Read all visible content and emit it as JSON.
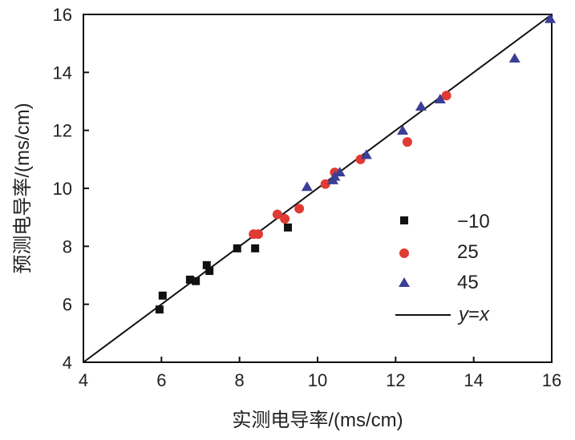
{
  "chart_data": {
    "type": "scatter",
    "title": "",
    "xlabel": "实测电导率/(ms/cm)",
    "ylabel": "预测电导率/(ms/cm)",
    "xlim": [
      4,
      16
    ],
    "ylim": [
      4,
      16
    ],
    "xticks": [
      "4",
      "6",
      "8",
      "10",
      "12",
      "14",
      "16"
    ],
    "yticks": [
      "4",
      "6",
      "8",
      "10",
      "12",
      "14",
      "16"
    ],
    "grid": false,
    "legend_position": "right-middle",
    "series": [
      {
        "name": "−10",
        "marker": "square",
        "color": "#111111",
        "x": [
          5.95,
          6.03,
          6.73,
          6.88,
          7.16,
          7.23,
          7.94,
          8.4,
          9.24
        ],
        "y": [
          5.82,
          6.3,
          6.85,
          6.8,
          7.35,
          7.15,
          7.93,
          7.93,
          8.65
        ]
      },
      {
        "name": "25",
        "marker": "circle",
        "color": "#e03a33",
        "x": [
          8.36,
          8.48,
          8.97,
          9.16,
          9.53,
          10.2,
          10.44,
          11.1,
          12.3,
          13.3
        ],
        "y": [
          8.42,
          8.42,
          9.1,
          8.95,
          9.3,
          10.15,
          10.55,
          11.0,
          11.6,
          13.2
        ]
      },
      {
        "name": "45",
        "marker": "triangle",
        "color": "#3a3f96",
        "x": [
          9.73,
          10.39,
          10.44,
          10.57,
          11.25,
          12.18,
          12.65,
          13.14,
          15.05,
          15.96
        ],
        "y": [
          10.05,
          10.28,
          10.4,
          10.55,
          11.15,
          11.99,
          12.82,
          13.07,
          14.48,
          15.84
        ]
      }
    ],
    "reference_line": {
      "name_prefix": "y",
      "name_eq": "=",
      "name_suffix": "x",
      "slope": 1,
      "intercept": 0
    }
  }
}
